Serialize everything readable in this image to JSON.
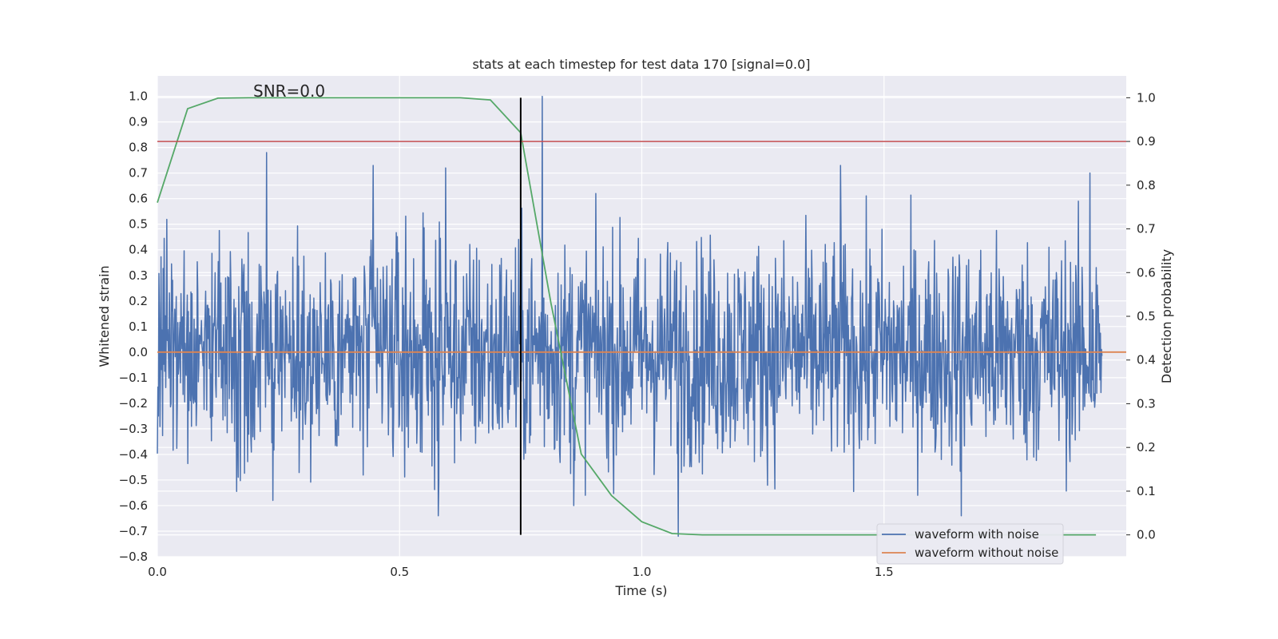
{
  "chart_data": {
    "type": "line",
    "title": "stats at each timestep for test data 170 [signal=0.0]",
    "xlabel": "Time (s)",
    "ylabel_left": "Whitened strain",
    "ylabel_right": "Detection probability",
    "xlim": [
      0.0,
      2.0
    ],
    "ylim_left": [
      -0.8,
      1.08
    ],
    "ylim_right": [
      -0.05,
      1.05
    ],
    "x_ticks": [
      {
        "value": 0.0,
        "label": "0.0"
      },
      {
        "value": 0.5,
        "label": "0.5"
      },
      {
        "value": 1.0,
        "label": "1.0"
      },
      {
        "value": 1.5,
        "label": "1.5"
      }
    ],
    "y_ticks_left": [
      {
        "value": 1.0,
        "label": "1.0"
      },
      {
        "value": 0.9,
        "label": "0.9"
      },
      {
        "value": 0.8,
        "label": "0.8"
      },
      {
        "value": 0.7,
        "label": "0.7"
      },
      {
        "value": 0.6,
        "label": "0.6"
      },
      {
        "value": 0.5,
        "label": "0.5"
      },
      {
        "value": 0.4,
        "label": "0.4"
      },
      {
        "value": 0.3,
        "label": "0.3"
      },
      {
        "value": 0.2,
        "label": "0.2"
      },
      {
        "value": 0.1,
        "label": "0.1"
      },
      {
        "value": 0.0,
        "label": "0.0"
      },
      {
        "value": -0.1,
        "label": "−0.1"
      },
      {
        "value": -0.2,
        "label": "−0.2"
      },
      {
        "value": -0.3,
        "label": "−0.3"
      },
      {
        "value": -0.4,
        "label": "−0.4"
      },
      {
        "value": -0.5,
        "label": "−0.5"
      },
      {
        "value": -0.6,
        "label": "−0.6"
      },
      {
        "value": -0.7,
        "label": "−0.7"
      },
      {
        "value": -0.8,
        "label": "−0.8"
      }
    ],
    "y_ticks_right": [
      {
        "value": 1.0,
        "label": "1.0"
      },
      {
        "value": 0.9,
        "label": "0.9"
      },
      {
        "value": 0.8,
        "label": "0.8"
      },
      {
        "value": 0.7,
        "label": "0.7"
      },
      {
        "value": 0.6,
        "label": "0.6"
      },
      {
        "value": 0.5,
        "label": "0.5"
      },
      {
        "value": 0.4,
        "label": "0.4"
      },
      {
        "value": 0.3,
        "label": "0.3"
      },
      {
        "value": 0.2,
        "label": "0.2"
      },
      {
        "value": 0.1,
        "label": "0.1"
      },
      {
        "value": 0.0,
        "label": "0.0"
      }
    ],
    "annotation": "SNR=0.0",
    "annotation_pos": {
      "x": 0.2,
      "y": 1.0
    },
    "detection_threshold": 0.9,
    "marker_time": 0.75,
    "series": [
      {
        "name": "waveform with noise",
        "axis": "left",
        "color": "#4c72b0",
        "noise_amplitude": 0.22,
        "extremes": [
          {
            "x": 0.225,
            "y": 0.78
          },
          {
            "x": 0.445,
            "y": 0.73
          },
          {
            "x": 0.595,
            "y": 0.72
          },
          {
            "x": 0.795,
            "y": 1.0
          },
          {
            "x": 1.41,
            "y": 0.73
          },
          {
            "x": 1.925,
            "y": 0.7
          },
          {
            "x": 0.238,
            "y": -0.58
          },
          {
            "x": 0.58,
            "y": -0.64
          },
          {
            "x": 1.075,
            "y": -0.72
          },
          {
            "x": 1.66,
            "y": -0.64
          },
          {
            "x": 0.86,
            "y": -0.6
          }
        ]
      },
      {
        "name": "waveform without noise",
        "axis": "left",
        "color": "#dd8452",
        "values": "constant 0.0"
      },
      {
        "name": "detection probability",
        "axis": "right",
        "color": "#55a868",
        "x": [
          0.0,
          0.0625,
          0.125,
          0.1875,
          0.25,
          0.3125,
          0.375,
          0.4375,
          0.5,
          0.5625,
          0.625,
          0.6875,
          0.75,
          0.8125,
          0.875,
          0.9375,
          1.0,
          1.0625,
          1.125,
          1.1875,
          1.25,
          1.3125,
          1.375,
          1.4375,
          1.5,
          1.5625,
          1.625,
          1.6875,
          1.75,
          1.8125,
          1.875,
          1.9375
        ],
        "y": [
          0.76,
          0.975,
          0.999,
          1.0,
          1.0,
          1.0,
          1.0,
          1.0,
          1.0,
          1.0,
          1.0,
          0.995,
          0.92,
          0.53,
          0.185,
          0.09,
          0.03,
          0.003,
          0.0,
          0.0,
          0.0,
          0.0,
          0.0,
          0.0,
          0.0,
          0.0,
          0.0,
          0.0,
          0.0,
          0.0,
          0.0,
          0.0
        ]
      }
    ],
    "threshold_color": "#c44e52",
    "marker_color": "#000000",
    "legend": {
      "placement": "lower-right",
      "entries": [
        "waveform with noise",
        "waveform without noise"
      ]
    }
  }
}
